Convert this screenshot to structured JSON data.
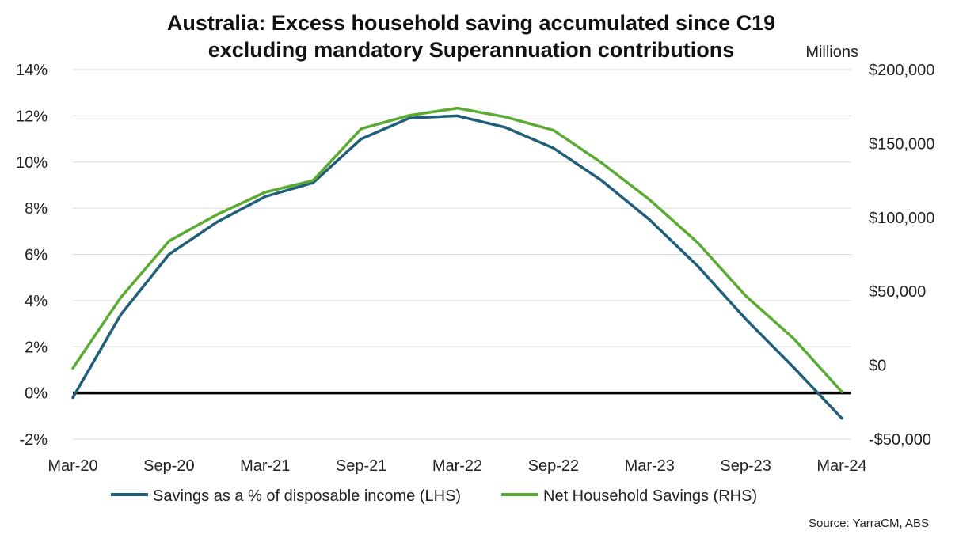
{
  "chart_data": {
    "type": "line",
    "title": [
      "Australia: Excess household saving accumulated since C19",
      "excluding mandatory Superannuation contributions"
    ],
    "right_unit_label": "Millions",
    "source": "Source: YarraCM, ABS",
    "x": [
      "Mar-20",
      "Jun-20",
      "Sep-20",
      "Dec-20",
      "Mar-21",
      "Jun-21",
      "Sep-21",
      "Dec-21",
      "Mar-22",
      "Jun-22",
      "Sep-22",
      "Dec-22",
      "Mar-23",
      "Jun-23",
      "Sep-23",
      "Dec-23",
      "Mar-24"
    ],
    "x_tick_labels": [
      "Mar-20",
      "Sep-20",
      "Mar-21",
      "Sep-21",
      "Mar-22",
      "Sep-22",
      "Mar-23",
      "Sep-23",
      "Mar-24"
    ],
    "left_axis": {
      "ylim": [
        -2,
        14
      ],
      "ticks": [
        -2,
        0,
        2,
        4,
        6,
        8,
        10,
        12,
        14
      ],
      "tick_labels": [
        "-2%",
        "0%",
        "2%",
        "4%",
        "6%",
        "8%",
        "10%",
        "12%",
        "14%"
      ]
    },
    "right_axis": {
      "ylim": [
        -50000,
        200000
      ],
      "ticks": [
        -50000,
        0,
        50000,
        100000,
        150000,
        200000
      ],
      "tick_labels": [
        "-$50,000",
        "$0",
        "$50,000",
        "$100,000",
        "$150,000",
        "$200,000"
      ]
    },
    "series": [
      {
        "name": "Savings as a % of disposable income (LHS)",
        "axis": "left",
        "color": "#1f5f7a",
        "values": [
          -0.2,
          3.4,
          6.0,
          7.4,
          8.5,
          9.1,
          11.0,
          11.9,
          12.0,
          11.5,
          10.6,
          9.2,
          7.5,
          5.5,
          3.2,
          1.1,
          -1.1
        ]
      },
      {
        "name": "Net Household Savings (RHS)",
        "axis": "right",
        "color": "#5aab32",
        "values": [
          -2000,
          46000,
          84000,
          102000,
          117000,
          125000,
          160000,
          169000,
          174000,
          168000,
          159000,
          137000,
          112000,
          83000,
          47000,
          18000,
          -18000
        ]
      }
    ],
    "zero_line": true,
    "grid": true,
    "legend": "bottom-center"
  }
}
